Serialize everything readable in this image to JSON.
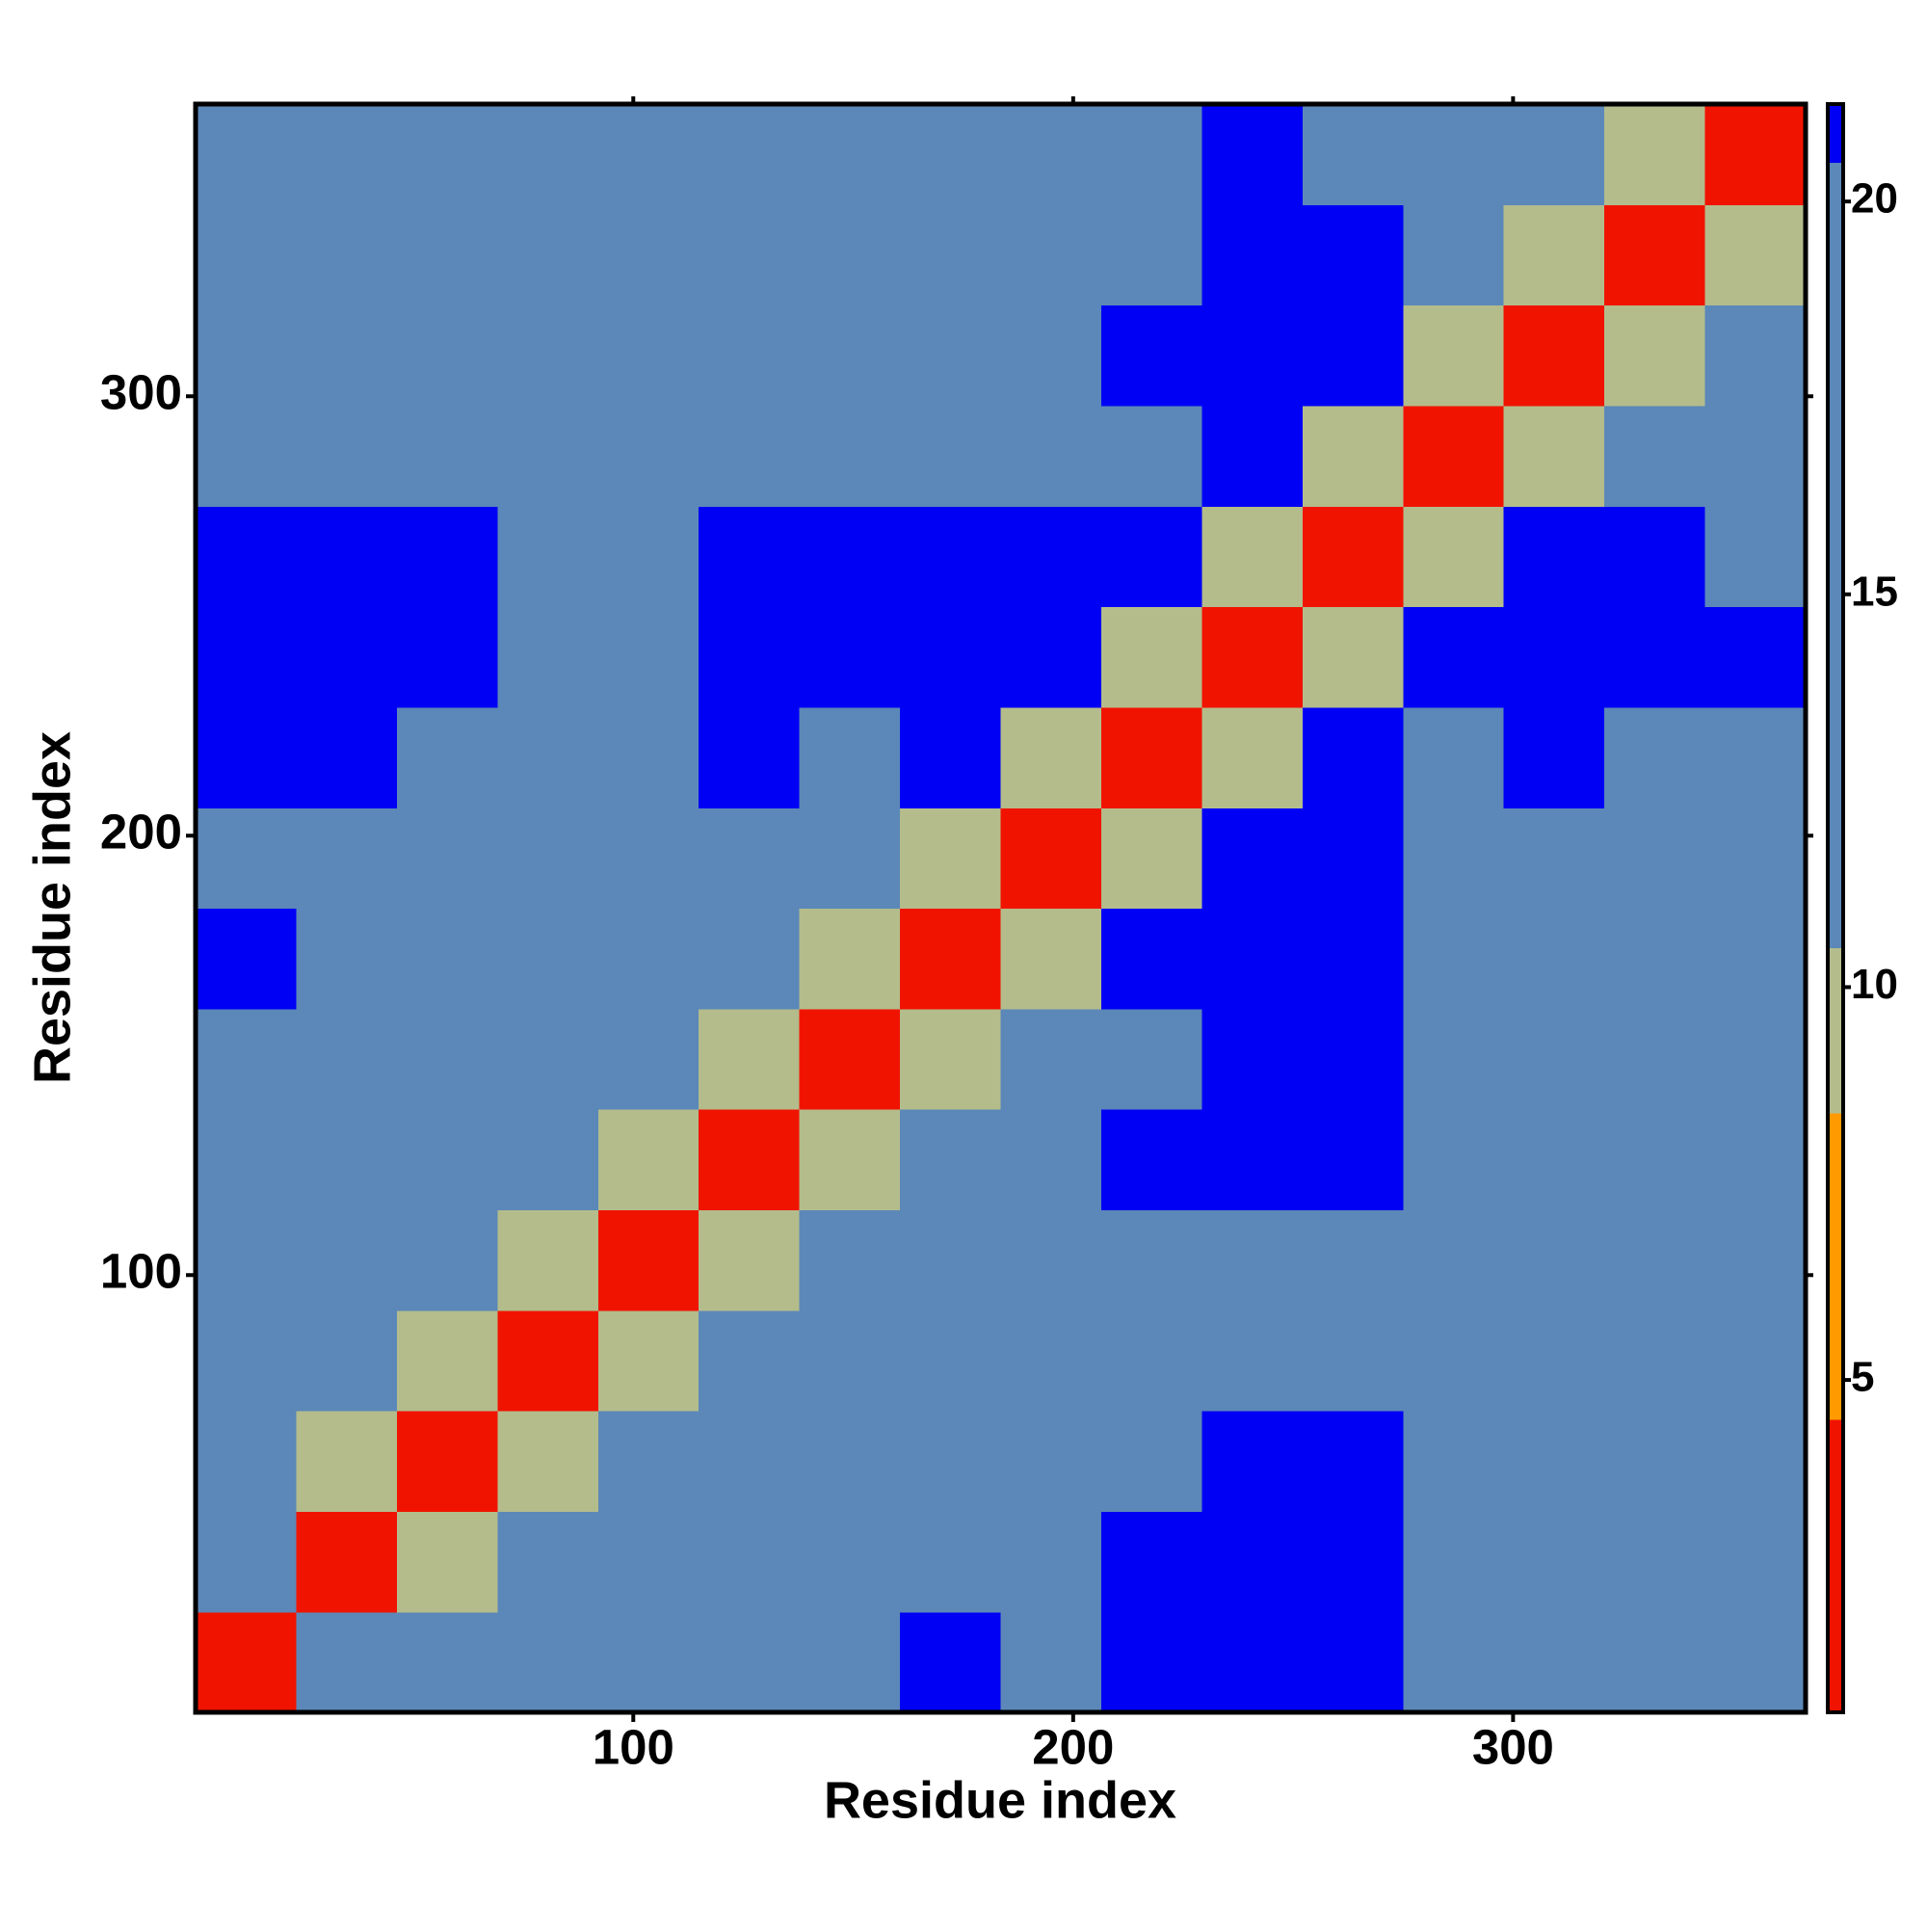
{
  "chart_data": {
    "type": "heatmap",
    "xlabel": "Residue index",
    "ylabel": "Residue index",
    "xlim": [
      0.5,
      366.5
    ],
    "ylim": [
      0.5,
      366.5
    ],
    "xticks": [
      100,
      200,
      300
    ],
    "yticks": [
      100,
      200,
      300
    ],
    "xbins": [
      0.5,
      23.375,
      46.25,
      69.125,
      92,
      114.875,
      137.75,
      160.625,
      183.5,
      206.375,
      229.25,
      252.125,
      275,
      297.875,
      320.75,
      343.625,
      366.5
    ],
    "ybins": [
      0.5,
      23.375,
      46.25,
      69.125,
      92,
      114.875,
      137.75,
      160.625,
      183.5,
      206.375,
      229.25,
      252.125,
      275,
      297.875,
      320.75,
      343.625,
      366.5
    ],
    "values": [
      [
        4,
        14,
        12,
        12,
        17,
        20,
        17,
        21,
        18,
        21,
        22,
        22,
        20,
        17,
        14,
        17
      ],
      [
        14,
        4,
        10,
        12,
        18,
        18,
        16,
        19,
        17,
        21,
        22,
        22,
        18,
        16,
        11,
        11
      ],
      [
        12,
        10,
        4,
        10,
        17,
        11,
        12,
        16,
        17,
        20,
        21,
        21,
        17,
        18,
        11,
        15
      ],
      [
        12,
        12,
        10,
        4,
        10,
        11,
        15,
        13,
        18,
        20,
        20,
        20,
        17,
        16,
        13,
        18
      ],
      [
        17,
        18,
        17,
        10,
        4,
        10,
        11,
        12,
        12,
        19,
        20,
        20,
        16,
        12,
        15,
        19
      ],
      [
        20,
        18,
        11,
        11,
        10,
        4,
        10,
        11,
        18,
        21,
        22,
        22,
        14,
        12,
        18,
        20
      ],
      [
        17,
        16,
        12,
        15,
        11,
        10,
        4,
        10,
        13,
        19,
        21,
        21,
        16,
        18,
        18,
        18
      ],
      [
        21,
        19,
        16,
        13,
        12,
        11,
        10,
        4,
        10,
        21,
        22,
        22,
        19,
        19,
        17,
        19
      ],
      [
        18,
        17,
        17,
        18,
        12,
        18,
        13,
        10,
        4,
        10,
        22,
        22,
        12,
        13,
        16,
        17
      ],
      [
        21,
        21,
        20,
        20,
        19,
        21,
        19,
        21,
        10,
        4,
        10,
        22,
        20,
        21,
        18,
        17
      ],
      [
        22,
        22,
        21,
        20,
        20,
        22,
        21,
        22,
        22,
        10,
        4,
        10,
        22,
        22,
        22,
        21
      ],
      [
        22,
        22,
        21,
        20,
        20,
        22,
        21,
        22,
        22,
        22,
        10,
        4,
        10,
        21,
        21,
        20
      ],
      [
        20,
        18,
        17,
        17,
        16,
        14,
        16,
        19,
        12,
        20,
        22,
        10,
        4,
        10,
        16,
        16
      ],
      [
        17,
        16,
        18,
        16,
        12,
        12,
        18,
        19,
        13,
        21,
        22,
        21,
        10,
        4,
        10,
        12
      ],
      [
        14,
        11,
        11,
        13,
        15,
        18,
        18,
        17,
        16,
        18,
        22,
        21,
        16,
        10,
        4,
        10
      ],
      [
        17,
        11,
        15,
        18,
        19,
        20,
        18,
        19,
        17,
        17,
        21,
        20,
        16,
        12,
        10,
        4
      ]
    ],
    "colorbar": {
      "lim": [
        0.77,
        21.24
      ],
      "ticks": [
        5,
        10,
        15,
        20
      ],
      "bands": [
        {
          "from": 0.77,
          "to": 4.5,
          "color": "#f01400"
        },
        {
          "from": 4.5,
          "to": 8.4,
          "color": "#ff9a00"
        },
        {
          "from": 8.4,
          "to": 10.5,
          "color": "#b4bc8c"
        },
        {
          "from": 10.5,
          "to": 20.5,
          "color": "#5b88b8"
        },
        {
          "from": 20.5,
          "to": 21.24,
          "color": "#0000f5"
        }
      ]
    }
  }
}
